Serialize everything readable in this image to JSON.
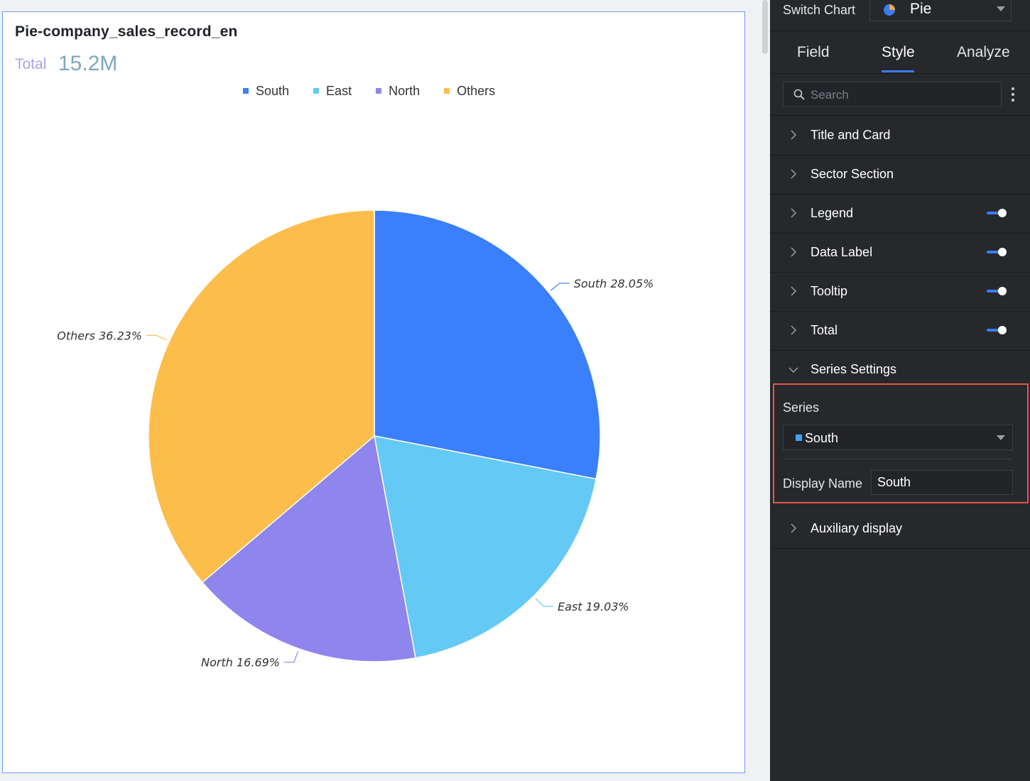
{
  "chart_card": {
    "title": "Pie-company_sales_record_en",
    "total_label": "Total",
    "total_value": "15.2M"
  },
  "chart_data": {
    "type": "pie",
    "title": "Pie-company_sales_record_en",
    "legend_position": "top-center",
    "slices": [
      {
        "name": "South",
        "percent": 28.05,
        "label": "South 28.05%",
        "color": "#3a7ffb"
      },
      {
        "name": "East",
        "percent": 19.03,
        "label": "East 19.03%",
        "color": "#65c9f5"
      },
      {
        "name": "North",
        "percent": 16.69,
        "label": "North 16.69%",
        "color": "#8e86ec"
      },
      {
        "name": "Others",
        "percent": 36.23,
        "label": "Others 36.23%",
        "color": "#fdbd4b"
      }
    ]
  },
  "panel": {
    "switch_chart_label": "Switch Chart",
    "chart_type": "Pie",
    "tabs": [
      "Field",
      "Style",
      "Analyze"
    ],
    "active_tab": "Style",
    "search_placeholder": "Search",
    "sections": [
      {
        "label": "Title and Card",
        "toggle": null,
        "expanded": false
      },
      {
        "label": "Sector Section",
        "toggle": null,
        "expanded": false
      },
      {
        "label": "Legend",
        "toggle": true,
        "expanded": false
      },
      {
        "label": "Data Label",
        "toggle": true,
        "expanded": false
      },
      {
        "label": "Tooltip",
        "toggle": true,
        "expanded": false
      },
      {
        "label": "Total",
        "toggle": true,
        "expanded": false
      },
      {
        "label": "Series Settings",
        "toggle": null,
        "expanded": true
      },
      {
        "label": "Auxiliary display",
        "toggle": null,
        "expanded": false
      }
    ],
    "series_settings": {
      "series_label": "Series",
      "series_value": "South",
      "series_color": "#3ea2f8",
      "display_name_label": "Display Name",
      "display_name_value": "South"
    }
  }
}
